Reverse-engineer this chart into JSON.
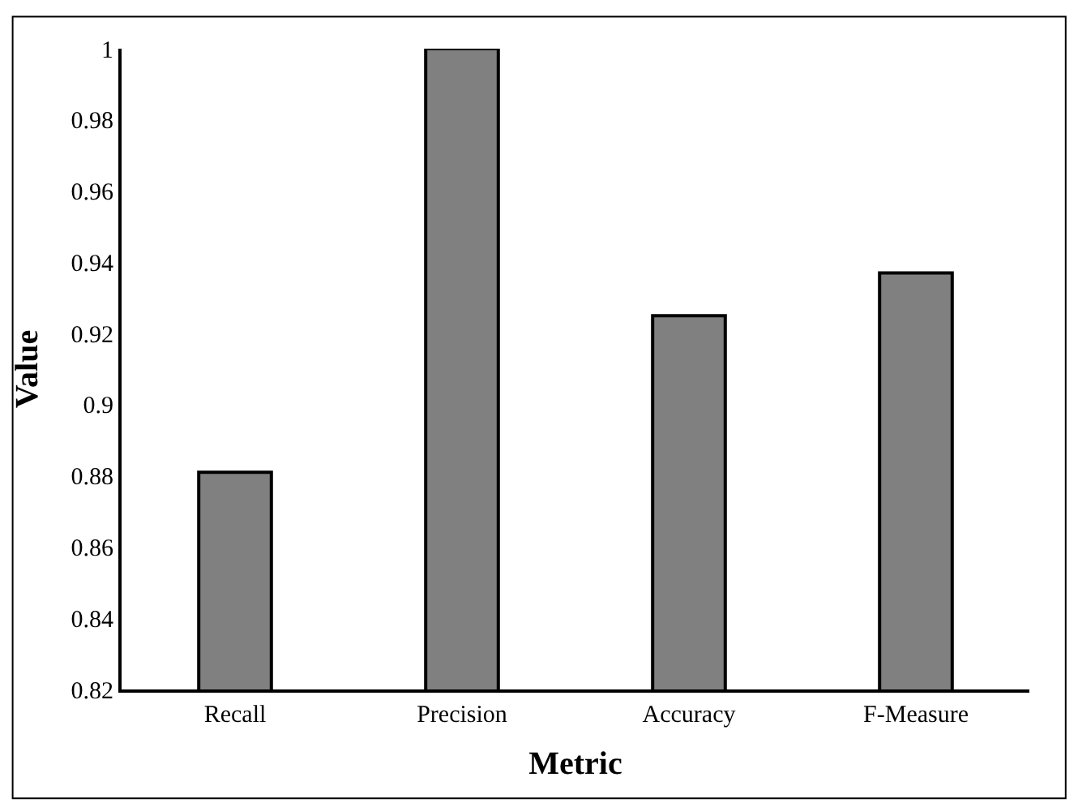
{
  "chart_data": {
    "type": "bar",
    "xlabel": "Metric",
    "ylabel": "Value",
    "categories": [
      "Recall",
      "Precision",
      "Accuracy",
      "F-Measure"
    ],
    "values": [
      0.881,
      1.0,
      0.925,
      0.937
    ],
    "color": "#808080",
    "ylim": [
      0.82,
      1
    ],
    "yticks": [
      0.82,
      0.84,
      0.86,
      0.88,
      {
        "value": 0.9,
        "label": "0.9"
      },
      0.92,
      0.94,
      0.96,
      0.98,
      {
        "value": 1,
        "label": "1"
      }
    ],
    "legend": false
  }
}
